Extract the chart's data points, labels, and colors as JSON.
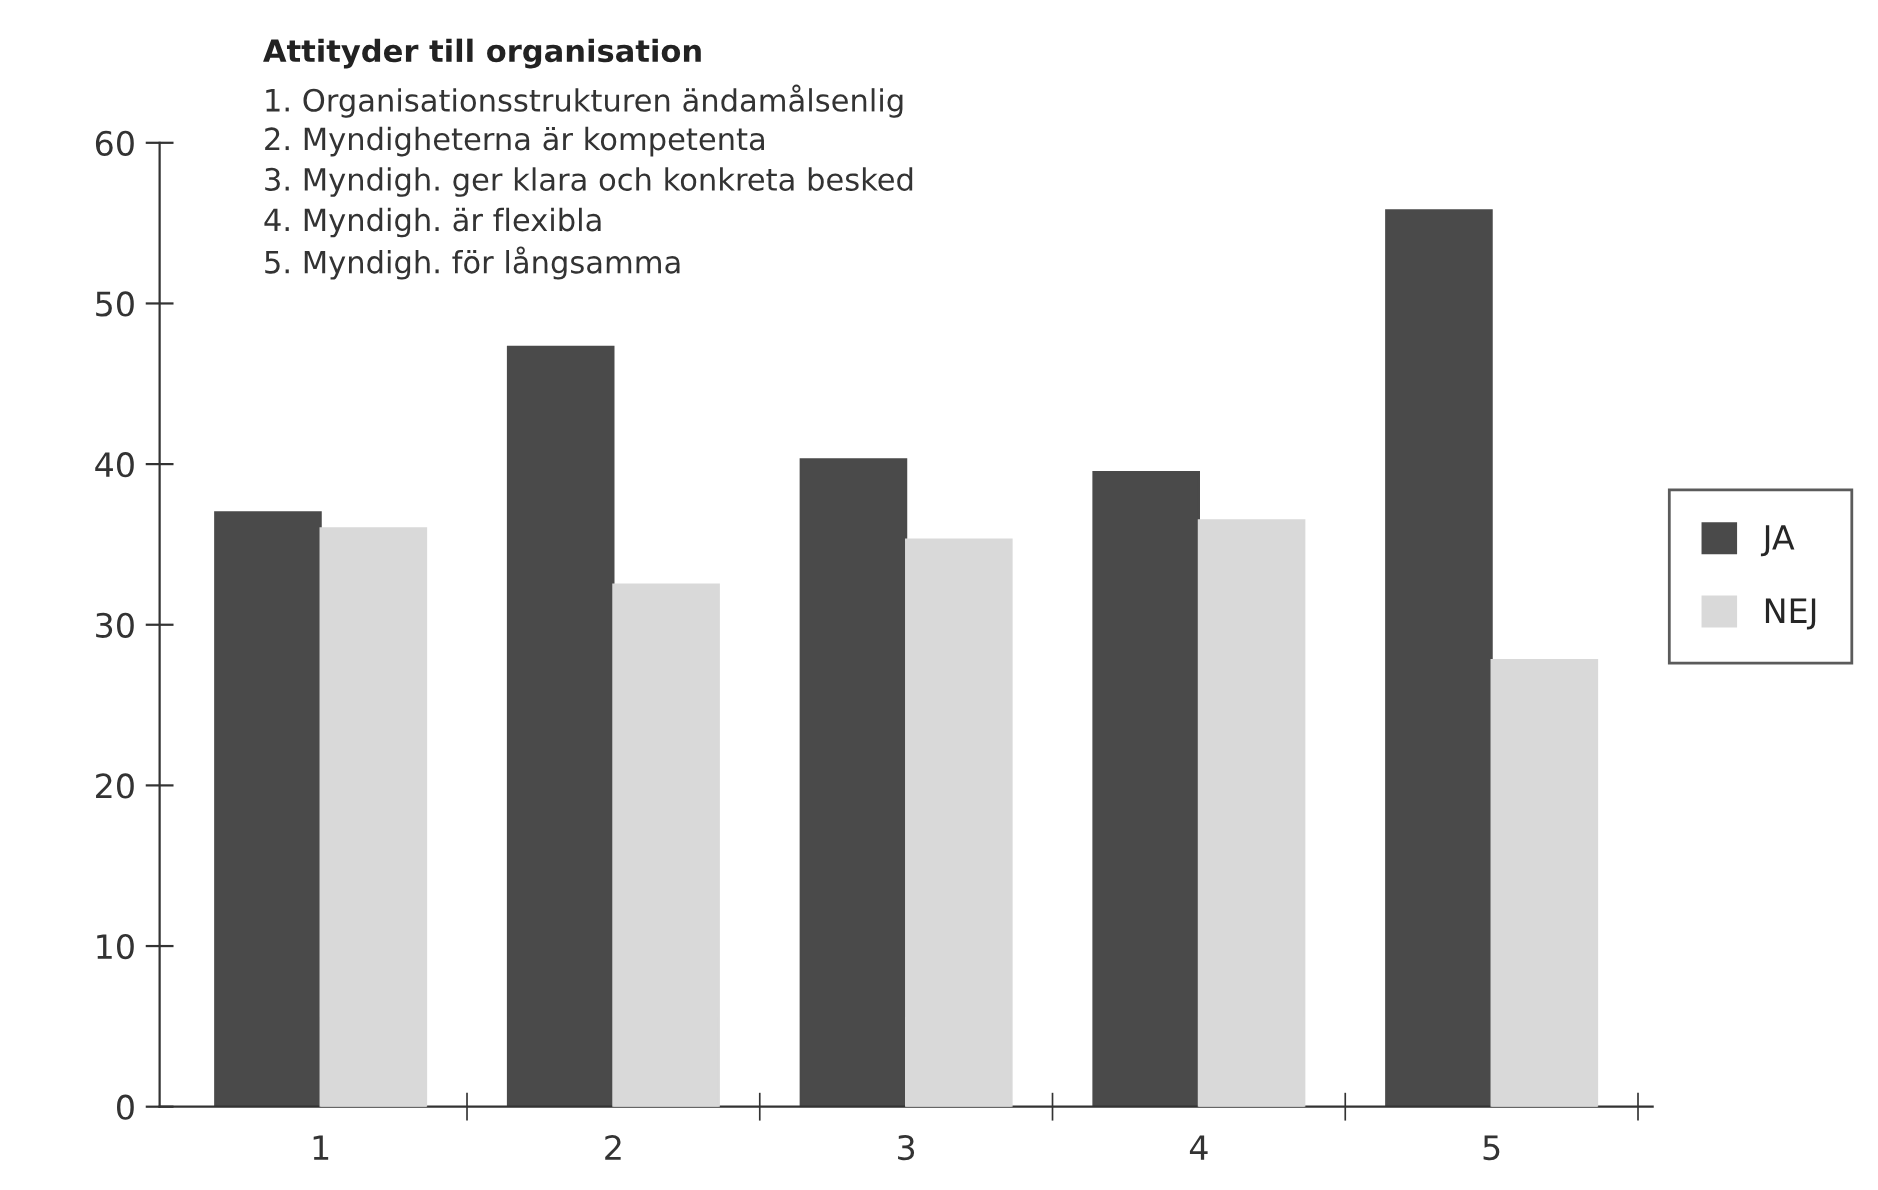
{
  "chart_data": {
    "type": "bar",
    "title": "Attityder till organisation",
    "annotations": [
      "1. Organisationsstrukturen ändamålsenlig",
      "2. Myndigheterna är kompetenta",
      "3. Myndigh. ger klara och konkreta besked",
      "4. Myndigh. är flexibla",
      "5. Myndigh. för långsamma"
    ],
    "categories": [
      "1",
      "2",
      "3",
      "4",
      "5"
    ],
    "series": [
      {
        "name": "JA",
        "color": "#4a4a4a",
        "values": [
          37,
          47.3,
          40.3,
          39.5,
          55.8
        ]
      },
      {
        "name": "NEJ",
        "color": "#d9d9d9",
        "values": [
          36,
          32.5,
          35.3,
          36.5,
          27.8
        ]
      }
    ],
    "ylim": [
      0,
      60
    ],
    "yticks": [
      0,
      10,
      20,
      30,
      40,
      50,
      60
    ],
    "grid": false,
    "legend": "right"
  }
}
